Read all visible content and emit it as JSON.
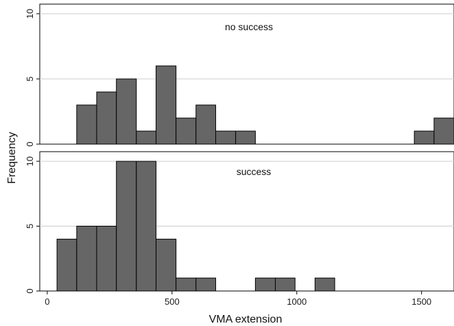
{
  "colors": {
    "bar_fill": "#666666",
    "bar_stroke": "#000000",
    "grid": "#cccccc",
    "axis": "#000000",
    "panel_bg": "#ffffff"
  },
  "chart_data": [
    {
      "type": "bar",
      "panel_label": "no success",
      "bin_width": 80,
      "bins": [
        {
          "x0": 118,
          "x1": 198,
          "count": 3
        },
        {
          "x0": 198,
          "x1": 277,
          "count": 4
        },
        {
          "x0": 277,
          "x1": 357,
          "count": 5
        },
        {
          "x0": 357,
          "x1": 436,
          "count": 1
        },
        {
          "x0": 436,
          "x1": 516,
          "count": 6
        },
        {
          "x0": 516,
          "x1": 596,
          "count": 2
        },
        {
          "x0": 596,
          "x1": 675,
          "count": 3
        },
        {
          "x0": 675,
          "x1": 755,
          "count": 1
        },
        {
          "x0": 755,
          "x1": 834,
          "count": 1
        },
        {
          "x0": 1471,
          "x1": 1550,
          "count": 1
        },
        {
          "x0": 1550,
          "x1": 1630,
          "count": 2
        }
      ],
      "ylim": [
        0,
        10
      ],
      "yticks": [
        0,
        5,
        10
      ],
      "grid": true
    },
    {
      "type": "bar",
      "panel_label": "success",
      "bin_width": 80,
      "bins": [
        {
          "x0": 39,
          "x1": 118,
          "count": 4
        },
        {
          "x0": 118,
          "x1": 198,
          "count": 5
        },
        {
          "x0": 198,
          "x1": 277,
          "count": 5
        },
        {
          "x0": 277,
          "x1": 357,
          "count": 10
        },
        {
          "x0": 357,
          "x1": 436,
          "count": 10
        },
        {
          "x0": 436,
          "x1": 516,
          "count": 4
        },
        {
          "x0": 516,
          "x1": 596,
          "count": 1
        },
        {
          "x0": 596,
          "x1": 675,
          "count": 1
        },
        {
          "x0": 834,
          "x1": 914,
          "count": 1
        },
        {
          "x0": 914,
          "x1": 993,
          "count": 1
        },
        {
          "x0": 1073,
          "x1": 1152,
          "count": 1
        }
      ],
      "ylim": [
        0,
        10
      ],
      "yticks": [
        0,
        5,
        10
      ],
      "grid": true
    }
  ],
  "x_axis": {
    "label": "VMA extension",
    "ticks": [
      0,
      500,
      1000,
      1500
    ],
    "range": [
      -30,
      1630
    ]
  },
  "y_axis": {
    "label": "Frequency"
  }
}
